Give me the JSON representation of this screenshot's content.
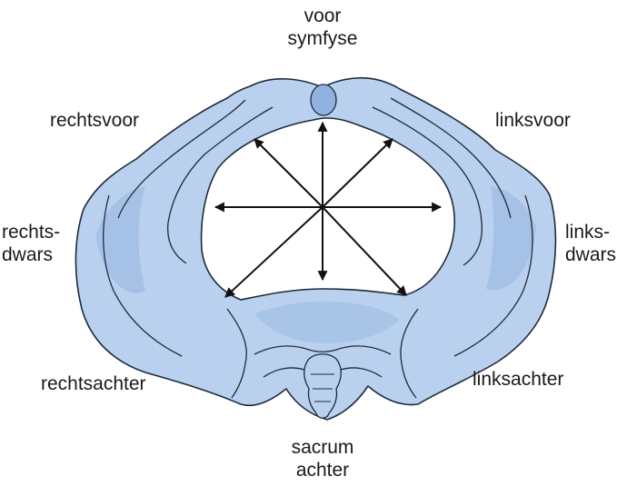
{
  "labels": {
    "front": {
      "line1": "voor",
      "line2": "symfyse"
    },
    "right_front": "rechtsvoor",
    "left_front": "linksvoor",
    "right_transverse": {
      "line1": "rechts-",
      "line2": "dwars"
    },
    "left_transverse": {
      "line1": "links-",
      "line2": "dwars"
    },
    "right_back": "rechtsachter",
    "left_back": "linksachter",
    "back": {
      "line1": "sacrum",
      "line2": "achter"
    }
  },
  "colors": {
    "bone_fill": "#b9d1ee",
    "bone_shade": "#9dbce3",
    "outline": "#1e2a3a",
    "arrow": "#111111",
    "symphysis": "#8fb2e2"
  }
}
